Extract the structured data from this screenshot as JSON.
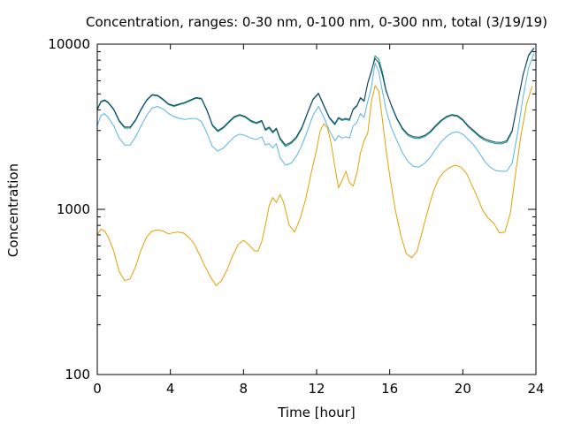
{
  "chart_data": {
    "type": "line",
    "title": "Concentration, ranges: 0-30 nm, 0-100 nm, 0-300 nm, total (3/19/19)",
    "xlabel": "Time [hour]",
    "ylabel": "Concentration",
    "xlim": [
      0,
      24
    ],
    "ylim": [
      100,
      10000
    ],
    "yscale": "log",
    "xticks": [
      0,
      4,
      8,
      12,
      16,
      20,
      24
    ],
    "xtick_labels": [
      "0",
      "4",
      "8",
      "12",
      "16",
      "20",
      "24"
    ],
    "yticks": [
      100,
      1000,
      10000
    ],
    "ytick_labels": [
      "100",
      "1000",
      "10000"
    ],
    "grid": false,
    "legend": "none",
    "series": [
      {
        "color": "#e69f00",
        "x": [
          0,
          0.2,
          0.4,
          0.6,
          0.9,
          1.2,
          1.5,
          1.8,
          2.1,
          2.4,
          2.7,
          3.0,
          3.3,
          3.6,
          3.9,
          4.1,
          4.4,
          4.7,
          5.0,
          5.3,
          5.6,
          5.9,
          6.2,
          6.5,
          6.8,
          7.1,
          7.4,
          7.7,
          8.0,
          8.3,
          8.6,
          8.8,
          9.0,
          9.2,
          9.4,
          9.6,
          9.8,
          10.0,
          10.2,
          10.5,
          10.8,
          11.1,
          11.4,
          11.7,
          12.0,
          12.2,
          12.4,
          12.6,
          12.8,
          13.0,
          13.2,
          13.4,
          13.6,
          13.8,
          14.0,
          14.2,
          14.4,
          14.6,
          14.8,
          15.0,
          15.2,
          15.4,
          15.6,
          15.8,
          16.0,
          16.3,
          16.6,
          16.9,
          17.2,
          17.5,
          17.8,
          18.1,
          18.4,
          18.7,
          19.0,
          19.3,
          19.6,
          19.9,
          20.2,
          20.5,
          20.8,
          21.1,
          21.4,
          21.7,
          22.0,
          22.3,
          22.6,
          22.9,
          23.2,
          23.5,
          23.8
        ],
        "values": [
          700,
          760,
          740,
          680,
          560,
          420,
          370,
          380,
          450,
          570,
          680,
          740,
          750,
          740,
          710,
          720,
          730,
          720,
          680,
          620,
          530,
          450,
          390,
          345,
          370,
          430,
          520,
          610,
          650,
          610,
          560,
          560,
          640,
          800,
          1050,
          1180,
          1100,
          1230,
          1100,
          800,
          730,
          880,
          1150,
          1650,
          2300,
          3000,
          3300,
          3100,
          2500,
          1800,
          1350,
          1500,
          1700,
          1450,
          1380,
          1650,
          2200,
          2600,
          2900,
          4500,
          5600,
          5200,
          3500,
          2300,
          1600,
          1000,
          700,
          540,
          510,
          560,
          750,
          1000,
          1300,
          1550,
          1700,
          1800,
          1850,
          1800,
          1650,
          1400,
          1180,
          980,
          880,
          820,
          720,
          730,
          950,
          1700,
          2900,
          4400,
          5600
        ]
      },
      {
        "color": "#56b4e9",
        "x": [
          0,
          0.2,
          0.4,
          0.6,
          0.9,
          1.2,
          1.5,
          1.8,
          2.1,
          2.4,
          2.7,
          3.0,
          3.3,
          3.6,
          3.9,
          4.2,
          4.5,
          4.8,
          5.1,
          5.4,
          5.7,
          6.0,
          6.3,
          6.6,
          6.9,
          7.2,
          7.5,
          7.8,
          8.1,
          8.4,
          8.7,
          9.0,
          9.2,
          9.4,
          9.6,
          9.8,
          10.0,
          10.3,
          10.6,
          10.9,
          11.2,
          11.5,
          11.8,
          12.1,
          12.4,
          12.7,
          13.0,
          13.2,
          13.4,
          13.6,
          13.8,
          14.0,
          14.2,
          14.4,
          14.6,
          14.8,
          15.0,
          15.2,
          15.4,
          15.6,
          15.8,
          16.1,
          16.4,
          16.7,
          17.0,
          17.3,
          17.6,
          17.9,
          18.2,
          18.5,
          18.8,
          19.1,
          19.4,
          19.7,
          20.0,
          20.3,
          20.6,
          20.9,
          21.2,
          21.5,
          21.8,
          22.1,
          22.4,
          22.7,
          23.0,
          23.3,
          23.6,
          23.9
        ],
        "values": [
          3200,
          3700,
          3800,
          3600,
          3200,
          2700,
          2450,
          2450,
          2750,
          3200,
          3700,
          4100,
          4200,
          4050,
          3800,
          3650,
          3550,
          3500,
          3550,
          3550,
          3400,
          2900,
          2400,
          2250,
          2350,
          2550,
          2750,
          2850,
          2800,
          2700,
          2650,
          2750,
          2450,
          2500,
          2350,
          2500,
          2050,
          1850,
          1900,
          2100,
          2450,
          3000,
          3700,
          4200,
          3600,
          3000,
          2600,
          2800,
          2700,
          2750,
          2700,
          3200,
          3350,
          3800,
          3600,
          4500,
          5500,
          7700,
          6800,
          5200,
          4000,
          3100,
          2600,
          2200,
          1950,
          1820,
          1800,
          1900,
          2050,
          2300,
          2550,
          2750,
          2900,
          2950,
          2850,
          2650,
          2450,
          2200,
          1950,
          1800,
          1720,
          1700,
          1700,
          1900,
          2900,
          4800,
          7200,
          8800
        ]
      },
      {
        "color": "#009e73",
        "x": [
          0,
          0.2,
          0.4,
          0.6,
          0.9,
          1.2,
          1.5,
          1.8,
          2.1,
          2.4,
          2.7,
          3.0,
          3.3,
          3.6,
          3.9,
          4.2,
          4.5,
          4.8,
          5.1,
          5.4,
          5.7,
          6.0,
          6.3,
          6.6,
          6.9,
          7.2,
          7.5,
          7.8,
          8.1,
          8.4,
          8.7,
          9.0,
          9.2,
          9.4,
          9.6,
          9.8,
          10.0,
          10.3,
          10.6,
          10.9,
          11.2,
          11.5,
          11.8,
          12.1,
          12.4,
          12.7,
          13.0,
          13.2,
          13.4,
          13.6,
          13.8,
          14.0,
          14.2,
          14.4,
          14.6,
          14.8,
          15.0,
          15.2,
          15.4,
          15.6,
          15.8,
          16.1,
          16.4,
          16.7,
          17.0,
          17.3,
          17.6,
          17.9,
          18.2,
          18.5,
          18.8,
          19.1,
          19.4,
          19.7,
          20.0,
          20.3,
          20.6,
          20.9,
          21.2,
          21.5,
          21.8,
          22.1,
          22.4,
          22.7,
          23.0,
          23.3,
          23.6,
          23.9
        ],
        "values": [
          4000,
          4450,
          4550,
          4400,
          4000,
          3400,
          3100,
          3100,
          3450,
          4000,
          4550,
          4900,
          4850,
          4600,
          4300,
          4200,
          4300,
          4400,
          4550,
          4700,
          4650,
          3950,
          3200,
          2950,
          3100,
          3350,
          3600,
          3700,
          3600,
          3400,
          3300,
          3400,
          3000,
          3100,
          2900,
          3050,
          2650,
          2400,
          2500,
          2700,
          3100,
          3800,
          4600,
          5000,
          4200,
          3550,
          3250,
          3550,
          3450,
          3500,
          3450,
          4000,
          4200,
          4700,
          4500,
          5800,
          6800,
          8500,
          8100,
          6800,
          5300,
          4200,
          3500,
          3050,
          2800,
          2700,
          2680,
          2750,
          2900,
          3150,
          3400,
          3600,
          3700,
          3650,
          3450,
          3150,
          2950,
          2750,
          2620,
          2550,
          2500,
          2490,
          2550,
          2950,
          4400,
          6500,
          8500,
          9400
        ]
      },
      {
        "color": "#1f3a6e",
        "x": [
          0,
          0.2,
          0.4,
          0.6,
          0.9,
          1.2,
          1.5,
          1.8,
          2.1,
          2.4,
          2.7,
          3.0,
          3.3,
          3.6,
          3.9,
          4.2,
          4.5,
          4.8,
          5.1,
          5.4,
          5.7,
          6.0,
          6.3,
          6.6,
          6.9,
          7.2,
          7.5,
          7.8,
          8.1,
          8.4,
          8.7,
          9.0,
          9.2,
          9.4,
          9.6,
          9.8,
          10.0,
          10.3,
          10.6,
          10.9,
          11.2,
          11.5,
          11.8,
          12.1,
          12.4,
          12.7,
          13.0,
          13.2,
          13.4,
          13.6,
          13.8,
          14.0,
          14.2,
          14.4,
          14.6,
          14.8,
          15.0,
          15.2,
          15.4,
          15.6,
          15.8,
          16.1,
          16.4,
          16.7,
          17.0,
          17.3,
          17.6,
          17.9,
          18.2,
          18.5,
          18.8,
          19.1,
          19.4,
          19.7,
          20.0,
          20.3,
          20.6,
          20.9,
          21.2,
          21.5,
          21.8,
          22.1,
          22.4,
          22.7,
          23.0,
          23.3,
          23.6,
          23.9
        ],
        "values": [
          4050,
          4500,
          4600,
          4450,
          4050,
          3450,
          3150,
          3150,
          3500,
          4050,
          4600,
          4950,
          4900,
          4650,
          4350,
          4250,
          4350,
          4450,
          4600,
          4750,
          4700,
          4000,
          3250,
          3000,
          3150,
          3400,
          3650,
          3750,
          3650,
          3450,
          3350,
          3450,
          3050,
          3150,
          2950,
          3100,
          2700,
          2450,
          2550,
          2750,
          3150,
          3850,
          4650,
          5050,
          4250,
          3600,
          3300,
          3600,
          3500,
          3550,
          3500,
          4050,
          4250,
          4750,
          4550,
          5850,
          6900,
          8200,
          7700,
          6500,
          5200,
          4250,
          3550,
          3100,
          2850,
          2750,
          2730,
          2800,
          2950,
          3200,
          3450,
          3650,
          3750,
          3700,
          3500,
          3200,
          3000,
          2800,
          2670,
          2600,
          2550,
          2540,
          2600,
          3000,
          4450,
          6550,
          8600,
          9500
        ]
      }
    ]
  }
}
